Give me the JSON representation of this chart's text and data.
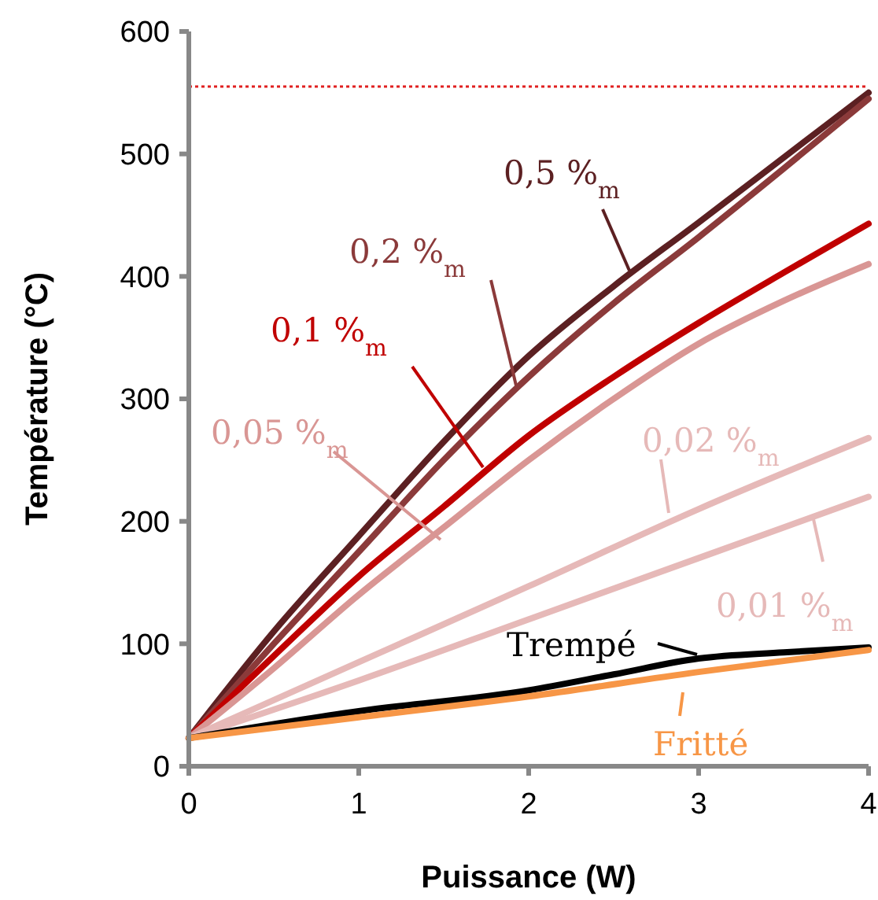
{
  "chart_data": {
    "type": "line",
    "xlabel": "Puissance (W)",
    "ylabel": "Température (°C)",
    "xlim": [
      0,
      4
    ],
    "ylim": [
      0,
      600
    ],
    "xticks": [
      0,
      1,
      2,
      3,
      4
    ],
    "yticks": [
      0,
      100,
      200,
      300,
      400,
      500,
      600
    ],
    "grid": false,
    "legend": "bottom right",
    "line_style": "solid",
    "ref_lines": [
      {
        "axis": "y",
        "value": 555,
        "color": "#e02020",
        "line_style": "dotted"
      }
    ],
    "series": [
      {
        "name": "0,5 %$_{m}$",
        "color": "#5c2022",
        "x": [
          0,
          0.5,
          1,
          1.5,
          2,
          2.5,
          3,
          3.5,
          4
        ],
        "values": [
          23,
          110,
          188,
          265,
          335,
          392,
          444,
          497,
          550
        ]
      },
      {
        "name": "0,2 %$_{m}$",
        "color": "#8b3a3a",
        "x": [
          0,
          0.5,
          1,
          1.5,
          2,
          2.5,
          3,
          3.5,
          4
        ],
        "values": [
          23,
          100,
          175,
          250,
          318,
          378,
          432,
          488,
          545
        ]
      },
      {
        "name": "0,1 %$_{m}$",
        "color": "#c00000",
        "x": [
          0,
          0.5,
          1,
          1.5,
          2,
          2.5,
          3,
          3.5,
          4
        ],
        "values": [
          23,
          90,
          155,
          212,
          270,
          318,
          362,
          403,
          443
        ]
      },
      {
        "name": "0,05 %$_{m}$",
        "color": "#d99694",
        "x": [
          0,
          0.5,
          1,
          1.5,
          2,
          2.5,
          3,
          3.5,
          4
        ],
        "values": [
          23,
          80,
          140,
          195,
          250,
          300,
          345,
          380,
          410
        ]
      },
      {
        "name": "0,02 %$_{m}$",
        "color": "#e6b9b8",
        "x": [
          0,
          1,
          2,
          3,
          4
        ],
        "values": [
          23,
          85,
          147,
          210,
          268
        ]
      },
      {
        "name": "0,01 %$_{m}$",
        "color": "#e6b9b8",
        "x": [
          0,
          1,
          2,
          3,
          4
        ],
        "values": [
          23,
          70,
          120,
          170,
          220
        ]
      },
      {
        "name": "Trempé",
        "color": "#000000",
        "x": [
          0,
          1,
          2,
          2.5,
          3,
          3.5,
          4
        ],
        "values": [
          23,
          45,
          62,
          75,
          88,
          93,
          97
        ]
      },
      {
        "name": "Fritté",
        "color": "#f79646",
        "x": [
          0,
          1,
          2,
          3,
          4
        ],
        "values": [
          23,
          40,
          57,
          77,
          95
        ]
      }
    ]
  }
}
